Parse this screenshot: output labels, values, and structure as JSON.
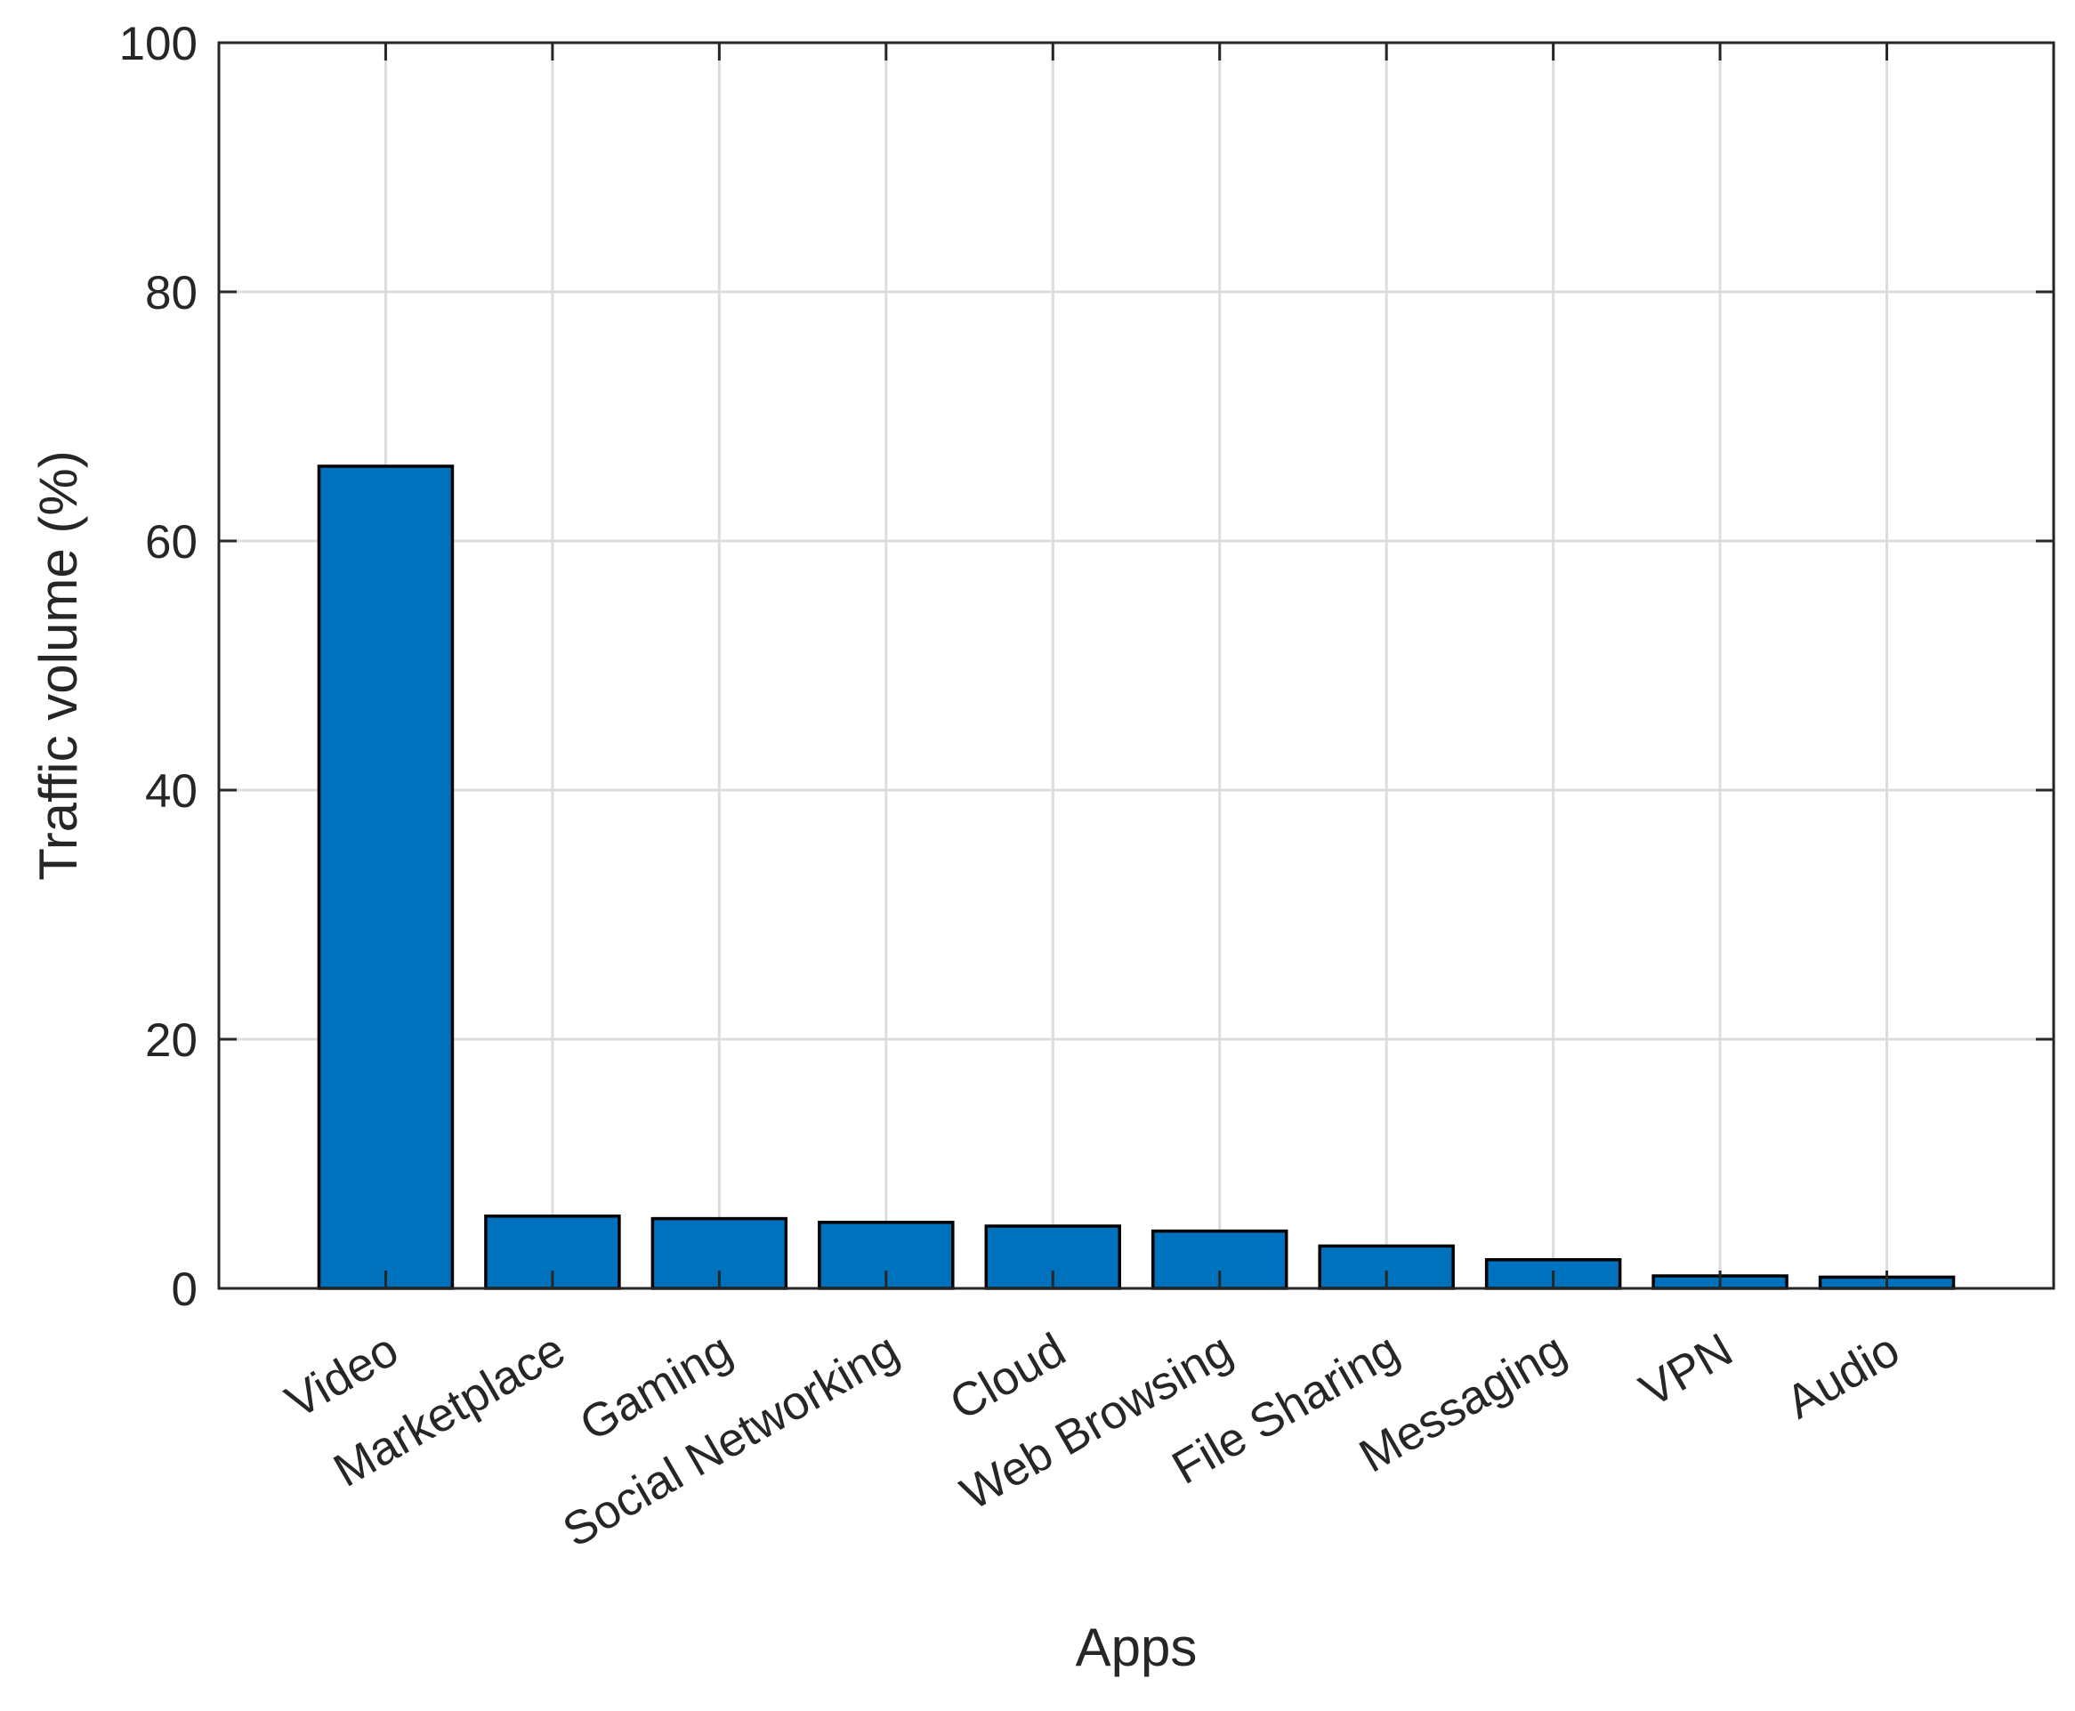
{
  "chart_data": {
    "type": "bar",
    "categories": [
      "Video",
      "Marketplace",
      "Gaming",
      "Social Networking",
      "Cloud",
      "Web Browsing",
      "File Sharing",
      "Messaging",
      "VPN",
      "Audio"
    ],
    "values": [
      66.0,
      5.8,
      5.6,
      5.3,
      5.0,
      4.6,
      3.4,
      2.3,
      1.0,
      0.9
    ],
    "title": "",
    "xlabel": "Apps",
    "ylabel": "Traffic volume (%)",
    "ylim": [
      0,
      100
    ],
    "yticks": [
      0,
      20,
      40,
      60,
      80,
      100
    ],
    "grid": true,
    "bar_color": "#0072BD",
    "bar_edge_color": "#000000"
  }
}
